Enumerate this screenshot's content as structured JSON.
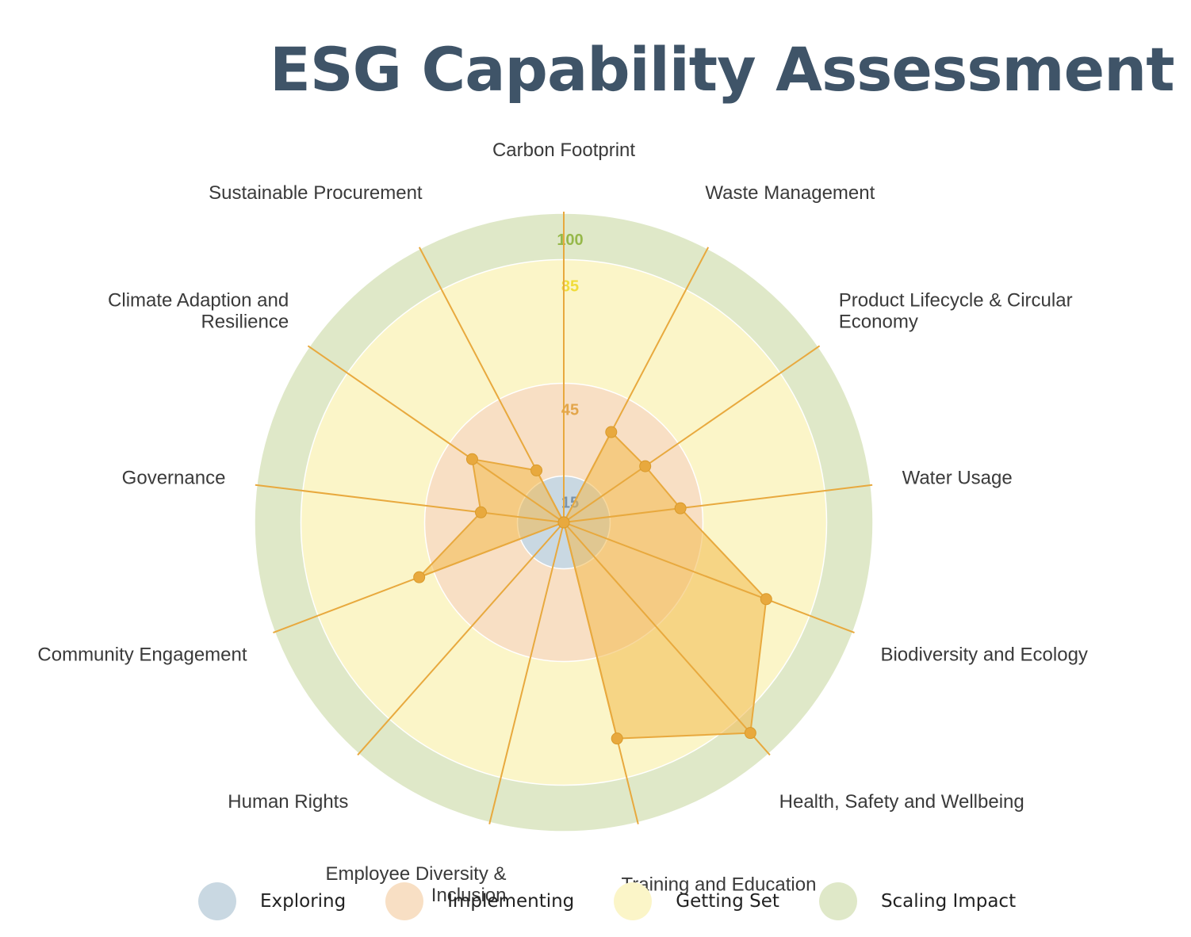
{
  "title": "ESG Capability Assessment",
  "chart_data": {
    "type": "radar",
    "title": "ESG Capability Assessment",
    "axes": [
      {
        "label": [
          "Carbon Footprint"
        ],
        "value": 0
      },
      {
        "label": [
          "Waste Management"
        ],
        "value": 33
      },
      {
        "label": [
          "Product Lifecycle & Circular",
          "Economy"
        ],
        "value": 32
      },
      {
        "label": [
          "Water Usage"
        ],
        "value": 38
      },
      {
        "label": [
          "Biodiversity and Ecology"
        ],
        "value": 70
      },
      {
        "label": [
          "Health, Safety and Wellbeing"
        ],
        "value": 91
      },
      {
        "label": [
          "Training and Education"
        ],
        "value": 72
      },
      {
        "label": [
          "Employee Diversity &",
          "Inclusion"
        ],
        "value": 0
      },
      {
        "label": [
          "Human Rights"
        ],
        "value": 0
      },
      {
        "label": [
          "Community Engagement"
        ],
        "value": 50
      },
      {
        "label": [
          "Governance"
        ],
        "value": 27
      },
      {
        "label": [
          "Climate Adaption and",
          "Resilience"
        ],
        "value": 36
      },
      {
        "label": [
          "Sustainable Procurement"
        ],
        "value": 19
      }
    ],
    "range": [
      0,
      100
    ],
    "bands": [
      {
        "name": "Exploring",
        "max": 15,
        "color": "#c9d8e2",
        "tick_color": "#7a93aa"
      },
      {
        "name": "Implementing",
        "max": 45,
        "color": "#f8dfc4",
        "tick_color": "#e3a64b"
      },
      {
        "name": "Getting Set",
        "max": 85,
        "color": "#fbf5c8",
        "tick_color": "#f0dc3a"
      },
      {
        "name": "Scaling Impact",
        "max": 100,
        "color": "#dfe8c8",
        "tick_color": "#96b84a"
      }
    ],
    "tick_labels": [
      "15",
      "45",
      "85",
      "100"
    ],
    "series": [
      {
        "color": "#e8a93e",
        "fill": "#f2b94f"
      }
    ],
    "legend_position": "bottom"
  }
}
